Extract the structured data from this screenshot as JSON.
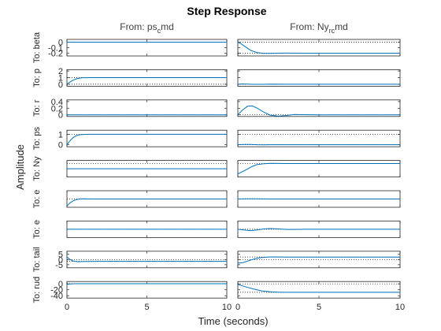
{
  "chart_data": {
    "type": "line",
    "title": "Step Response",
    "xlabel": "Time (seconds)",
    "ylabel": "Amplitude",
    "xlim": [
      0,
      10
    ],
    "x_ticks": [
      "0",
      "5",
      "10"
    ],
    "grid": false,
    "columns": [
      {
        "label": "From: ps",
        "sub": "c",
        "rest": "md"
      },
      {
        "label": "From: Ny",
        "sub": "rc",
        "rest": "md"
      }
    ],
    "rows": [
      {
        "label": "To: beta",
        "ylim": [
          -0.25,
          0.05
        ],
        "ticks": [
          "0",
          "-0.1",
          "-0.2"
        ],
        "tick_values": [
          0,
          -0.1,
          -0.2
        ],
        "dotted": 0,
        "series": [
          {
            "x": [
              0,
              0.5,
              1,
              2,
              3,
              5,
              10
            ],
            "y": [
              0,
              0,
              0,
              0,
              0,
              0,
              0
            ]
          },
          {
            "x": [
              0,
              0.2,
              0.5,
              0.8,
              1.2,
              1.6,
              2.0,
              2.5,
              3.0,
              4.0,
              6.0,
              10
            ],
            "y": [
              0,
              -0.03,
              -0.09,
              -0.15,
              -0.19,
              -0.205,
              -0.205,
              -0.2,
              -0.198,
              -0.2,
              -0.2,
              -0.2
            ]
          }
        ]
      },
      {
        "label": "To: p",
        "ylim": [
          -0.3,
          2.2
        ],
        "ticks": [
          "2",
          "1",
          "0"
        ],
        "tick_values": [
          2,
          1,
          0
        ],
        "dotted": 0,
        "series": [
          {
            "x": [
              0,
              0.2,
              0.4,
              0.6,
              0.8,
              1.0,
              1.5,
              2,
              3,
              5,
              10
            ],
            "y": [
              0,
              0.35,
              0.62,
              0.82,
              0.93,
              0.98,
              1.0,
              1.0,
              1.0,
              1.0,
              1.0
            ]
          },
          {
            "x": [
              0,
              0.3,
              0.6,
              1.0,
              1.5,
              2.0,
              3.0,
              5.0,
              10
            ],
            "y": [
              0,
              0.05,
              0.02,
              -0.02,
              -0.01,
              0.01,
              0,
              0,
              0
            ]
          }
        ]
      },
      {
        "label": "To: r",
        "ylim": [
          -0.05,
          0.45
        ],
        "ticks": [
          "0.4",
          "0.2",
          "0"
        ],
        "tick_values": [
          0.4,
          0.2,
          0
        ],
        "dotted": 0,
        "series": [
          {
            "x": [
              0,
              1,
              2,
              4,
              10
            ],
            "y": [
              0,
              0,
              0,
              0,
              0
            ]
          },
          {
            "x": [
              0,
              0.3,
              0.6,
              0.9,
              1.2,
              1.6,
              2.0,
              2.5,
              3.0,
              3.5,
              4.0,
              5.0,
              6.0,
              10
            ],
            "y": [
              0,
              0.15,
              0.26,
              0.27,
              0.2,
              0.08,
              -0.01,
              -0.04,
              -0.02,
              0.01,
              0.005,
              0,
              0,
              0
            ]
          }
        ]
      },
      {
        "label": "To: ps",
        "ylim": [
          -0.2,
          1.4
        ],
        "ticks": [
          "1",
          "0"
        ],
        "tick_values": [
          1,
          0
        ],
        "dotted": 1,
        "series": [
          {
            "x": [
              0,
              0.2,
              0.4,
              0.6,
              0.8,
              1.0,
              1.5,
              2,
              3,
              5,
              10
            ],
            "y": [
              0,
              0.4,
              0.7,
              0.88,
              0.96,
              0.99,
              1.0,
              1.0,
              1.0,
              1.0,
              1.0
            ]
          },
          {
            "x": [
              0,
              0.4,
              0.8,
              1.2,
              1.6,
              2.0,
              3.0,
              5.0,
              10
            ],
            "y": [
              0,
              0.03,
              0.02,
              0,
              -0.01,
              0,
              0,
              0,
              0
            ]
          }
        ]
      },
      {
        "label": "To: Ny",
        "ylim": [
          -1.6,
          1.6
        ],
        "ticks": [],
        "tick_values": [],
        "dotted": 1,
        "series": [
          {
            "x": [
              0,
              1,
              3,
              10
            ],
            "y": [
              0,
              0,
              0,
              0
            ]
          },
          {
            "x": [
              0,
              0.3,
              0.6,
              0.9,
              1.2,
              1.6,
              2.0,
              2.5,
              3.0,
              4.0,
              5.0,
              10
            ],
            "y": [
              -1.0,
              -0.55,
              -0.05,
              0.45,
              0.8,
              0.98,
              1.04,
              1.02,
              1.0,
              1.0,
              1.0,
              1.0
            ]
          }
        ]
      },
      {
        "label": "To: e",
        "ylim": [
          -1.2,
          1.2
        ],
        "ticks": [],
        "tick_values": [],
        "dotted": 0,
        "series": [
          {
            "x": [
              0,
              0.2,
              0.4,
              0.6,
              0.8,
              1.0,
              1.5,
              2,
              3,
              5,
              10
            ],
            "y": [
              -1.0,
              -0.55,
              -0.25,
              -0.08,
              0,
              0.02,
              0,
              0,
              0,
              0,
              0
            ]
          },
          {
            "x": [
              0,
              0.5,
              1.0,
              2.0,
              3.0,
              5.0,
              10
            ],
            "y": [
              0,
              0.03,
              0.02,
              0,
              0,
              0,
              0
            ]
          }
        ]
      },
      {
        "label": "To: e",
        "ylim": [
          -1.2,
          1.2
        ],
        "ticks": [],
        "tick_values": [],
        "dotted": 0,
        "series": [
          {
            "x": [
              0,
              1,
              3,
              10
            ],
            "y": [
              0,
              0,
              0,
              0
            ]
          },
          {
            "x": [
              0,
              0.4,
              0.8,
              1.2,
              1.6,
              2.0,
              2.5,
              3.0,
              3.5,
              4.0,
              5.0,
              10
            ],
            "y": [
              0,
              -0.12,
              -0.2,
              -0.1,
              0.05,
              0.1,
              0.05,
              -0.02,
              -0.02,
              0,
              0,
              0
            ]
          }
        ]
      },
      {
        "label": "To: tail",
        "ylim": [
          -8,
          8
        ],
        "ticks": [
          "5",
          "0",
          "-5"
        ],
        "tick_values": [
          5,
          0,
          -5
        ],
        "dotted": 0,
        "series": [
          {
            "x": [
              0,
              0.15,
              0.4,
              0.7,
              1.0,
              1.5,
              2.0,
              3.0,
              5.0,
              10
            ],
            "y": [
              2.5,
              0.5,
              -1.6,
              -2.1,
              -2.0,
              -1.8,
              -1.75,
              -1.75,
              -1.75,
              -1.75
            ]
          },
          {
            "x": [
              0,
              0.3,
              0.6,
              1.0,
              1.4,
              1.8,
              2.2,
              3.0,
              4.0,
              6.0,
              10
            ],
            "y": [
              -3.5,
              -3.0,
              -1.5,
              0.5,
              1.8,
              2.4,
              2.5,
              2.4,
              2.4,
              2.4,
              2.4
            ]
          }
        ]
      },
      {
        "label": "To: rud",
        "ylim": [
          -48,
          8
        ],
        "ticks": [
          "0",
          "-20",
          "-40"
        ],
        "tick_values": [
          0,
          -20,
          -40
        ],
        "dotted": 0,
        "series": [
          {
            "x": [
              0,
              0.2,
              0.5,
              1.0,
              2.0,
              3.0,
              5.0,
              10
            ],
            "y": [
              -2,
              0,
              0.5,
              0.5,
              0.5,
              0.5,
              0.5,
              0.5
            ]
          },
          {
            "x": [
              0,
              0.3,
              0.6,
              1.0,
              1.5,
              2.0,
              2.5,
              3.0,
              4.0,
              6.0,
              10
            ],
            "y": [
              -2,
              -7,
              -12,
              -18,
              -24,
              -27,
              -28,
              -28.5,
              -28.5,
              -28.5,
              -28.5
            ]
          }
        ]
      }
    ]
  },
  "colors": {
    "line": "#0072bd",
    "axis": "#262626",
    "text": "#262626",
    "subtext": "#404040"
  }
}
